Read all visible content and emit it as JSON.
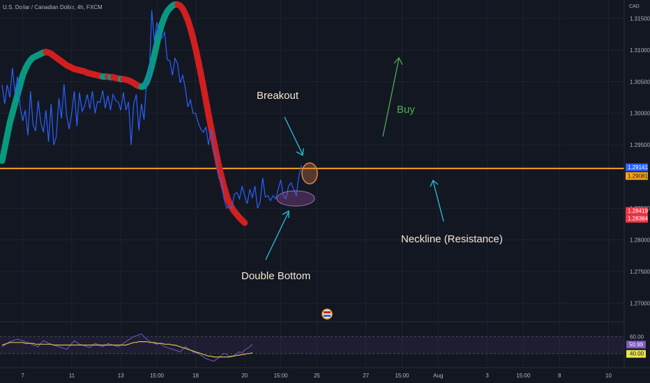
{
  "header": {
    "symbol": "U.S. Dollar / Canadian Dollar, 4h, FXCM",
    "unit": "CAD"
  },
  "chart_data": {
    "type": "line",
    "ylim": [
      1.2673,
      1.3179
    ],
    "y_ticks": [
      "1.31500",
      "1.31000",
      "1.30500",
      "1.30000",
      "1.29500",
      "1.28500",
      "1.28000",
      "1.27500",
      "1.27000"
    ],
    "x_ticks": [
      {
        "label": "7",
        "i": 8
      },
      {
        "label": "11",
        "i": 27
      },
      {
        "label": "13",
        "i": 46
      },
      {
        "label": "15:00",
        "i": 60
      },
      {
        "label": "18",
        "i": 75
      },
      {
        "label": "20",
        "i": 94
      },
      {
        "label": "15:00",
        "i": 108
      },
      {
        "label": "25",
        "i": 122
      },
      {
        "label": "27",
        "i": 141
      },
      {
        "label": "15:00",
        "i": 155
      },
      {
        "label": "Aug",
        "i": 169
      },
      {
        "label": "3",
        "i": 188
      },
      {
        "label": "15:00",
        "i": 202
      },
      {
        "label": "8",
        "i": 216
      },
      {
        "label": "10",
        "i": 235
      }
    ],
    "series": [
      {
        "values": [
          1.3045,
          1.3015,
          1.3045,
          1.3025,
          1.3072,
          1.3032,
          1.3058,
          1.301,
          1.2988,
          1.3005,
          1.2965,
          1.3035,
          1.2982,
          1.2972,
          1.302,
          1.2985,
          1.297,
          1.3005,
          1.2955,
          1.3015,
          1.295,
          1.2963,
          1.3024,
          1.2992,
          1.3046,
          1.2997,
          1.2975,
          1.3002,
          1.3035,
          1.298,
          1.3033,
          1.3003,
          1.3012,
          1.303,
          1.3007,
          1.3035,
          1.3,
          1.3019,
          1.3017,
          1.3036,
          1.3008,
          1.3028,
          1.3005,
          1.303,
          1.302,
          1.3018,
          1.3005,
          1.3033,
          1.3005,
          1.3018,
          1.295,
          1.3015,
          1.303,
          1.2973,
          1.3015,
          1.299,
          1.305,
          1.3056,
          1.3163,
          1.3113,
          1.3144,
          1.3123,
          1.3119,
          1.3128,
          1.3085,
          1.3083,
          1.306,
          1.3087,
          1.3078,
          1.3048,
          1.306,
          1.304,
          1.301,
          1.3021,
          1.3,
          1.3,
          1.2985,
          1.2975,
          1.297,
          1.2978,
          1.295,
          1.2975,
          1.2945,
          1.293,
          1.2898,
          1.2898,
          1.2865,
          1.285,
          1.2853,
          1.285,
          1.2872,
          1.2875,
          1.2865,
          1.2885,
          1.287,
          1.2857,
          1.288,
          1.2867,
          1.2885,
          1.285,
          1.286,
          1.2898,
          1.2868,
          1.287,
          1.2862,
          1.287,
          1.2865,
          1.288,
          1.2895,
          1.287,
          1.2865,
          1.2885,
          1.289,
          1.288,
          1.287,
          1.29,
          1.2918
        ],
        "color": "#2962ff"
      }
    ],
    "moving_average": {
      "values": [
        1.2925,
        1.2945,
        1.2965,
        1.2985,
        1.3,
        1.3015,
        1.303,
        1.3045,
        1.306,
        1.307,
        1.3078,
        1.3084,
        1.3088,
        1.309,
        1.3092,
        1.3094,
        1.3096,
        1.3097,
        1.3096,
        1.3094,
        1.3091,
        1.3088,
        1.3085,
        1.3082,
        1.3079,
        1.3076,
        1.3074,
        1.3072,
        1.307,
        1.3069,
        1.3068,
        1.3067,
        1.3066,
        1.3064,
        1.3063,
        1.3062,
        1.3061,
        1.306,
        1.3059,
        1.3058,
        1.3058,
        1.3058,
        1.3057,
        1.3057,
        1.3056,
        1.3055,
        1.3054,
        1.3054,
        1.3053,
        1.3052,
        1.305,
        1.3048,
        1.3045,
        1.3043,
        1.3042,
        1.3043,
        1.3049,
        1.306,
        1.3075,
        1.3092,
        1.311,
        1.3128,
        1.3142,
        1.3153,
        1.3161,
        1.3166,
        1.317,
        1.3172,
        1.3172,
        1.317,
        1.3165,
        1.3157,
        1.3147,
        1.3134,
        1.3119,
        1.3102,
        1.3083,
        1.3063,
        1.3042,
        1.302,
        1.2998,
        1.2977,
        1.2957,
        1.2937,
        1.2917,
        1.29,
        1.2884,
        1.287,
        1.2859,
        1.2851,
        1.2845,
        1.284,
        1.2835,
        1.2831,
        1.2827
      ],
      "rising_color": "#089981",
      "falling_color": "#d11f1f"
    },
    "horizontal_lines": [
      {
        "label": "Neckline (Resistance)",
        "y": 1.2913,
        "color": "#f7a21b"
      }
    ],
    "price_labels": [
      {
        "value": "1.29141",
        "bg": "#2962ff",
        "fg": "#ffffff",
        "y": 1.29141
      },
      {
        "value": "1.29081",
        "bg": "#f7a21b",
        "fg": "#131722",
        "y": 1.29081
      },
      {
        "value": "1.28419",
        "bg": "#f23645",
        "fg": "#ffffff",
        "y": 1.28419
      },
      {
        "value": "1.28384",
        "bg": "#f23645",
        "fg": "#ffffff",
        "y": 1.28384
      }
    ],
    "annotations": [
      {
        "text": "Breakout",
        "color": "#f5e6d3"
      },
      {
        "text": "Buy",
        "color": "#4caf50"
      },
      {
        "text": "Neckline (Resistance)",
        "color": "#f5e6d3"
      },
      {
        "text": "Double Bottom",
        "color": "#f5e6d3"
      }
    ],
    "rsi": {
      "ylim": [
        25,
        75
      ],
      "levels": [
        60,
        40
      ],
      "level_labels": [
        "60.00",
        "40.00"
      ],
      "current": "50.99",
      "rsi_values": [
        48,
        50,
        52,
        54,
        55,
        56,
        57,
        56,
        55,
        54,
        53,
        52,
        50,
        49,
        48,
        52,
        55,
        54,
        52,
        51,
        50,
        49,
        48,
        47,
        46,
        45,
        48,
        52,
        55,
        53,
        51,
        50,
        49,
        48,
        47,
        50,
        52,
        51,
        49,
        48,
        50,
        52,
        51,
        50,
        49,
        48,
        50,
        52,
        54,
        56,
        58,
        60,
        61,
        62,
        63,
        60,
        57,
        55,
        53,
        52,
        51,
        52,
        50,
        48,
        47,
        46,
        45,
        44,
        43,
        42,
        45,
        48,
        46,
        44,
        42,
        41,
        40,
        38,
        36,
        34,
        33,
        32,
        31,
        33,
        35,
        38,
        40,
        39,
        37,
        36,
        38,
        40,
        42,
        41,
        44,
        46,
        48,
        51
      ],
      "ma_values": [
        50,
        51,
        52,
        53,
        53,
        53,
        53,
        53,
        53,
        52,
        52,
        52,
        52,
        51,
        51,
        51,
        51,
        51,
        51,
        51,
        50,
        50,
        50,
        50,
        50,
        50,
        50,
        50,
        50,
        50,
        50,
        50,
        50,
        50,
        50,
        50,
        50,
        50,
        50,
        50,
        50,
        50,
        50,
        50,
        50,
        50,
        50,
        50,
        50,
        51,
        52,
        53,
        53,
        54,
        54,
        54,
        54,
        53,
        53,
        53,
        52,
        52,
        52,
        51,
        51,
        51,
        50,
        50,
        49,
        48,
        47,
        46,
        45,
        44,
        43,
        42,
        41,
        40,
        39,
        38,
        37,
        37,
        36,
        36,
        36,
        36,
        36,
        36,
        36,
        37,
        37,
        38,
        38,
        39,
        39,
        40,
        40,
        41
      ],
      "rsi_color": "#7e57c2",
      "ma_color": "#d4c44a"
    }
  }
}
